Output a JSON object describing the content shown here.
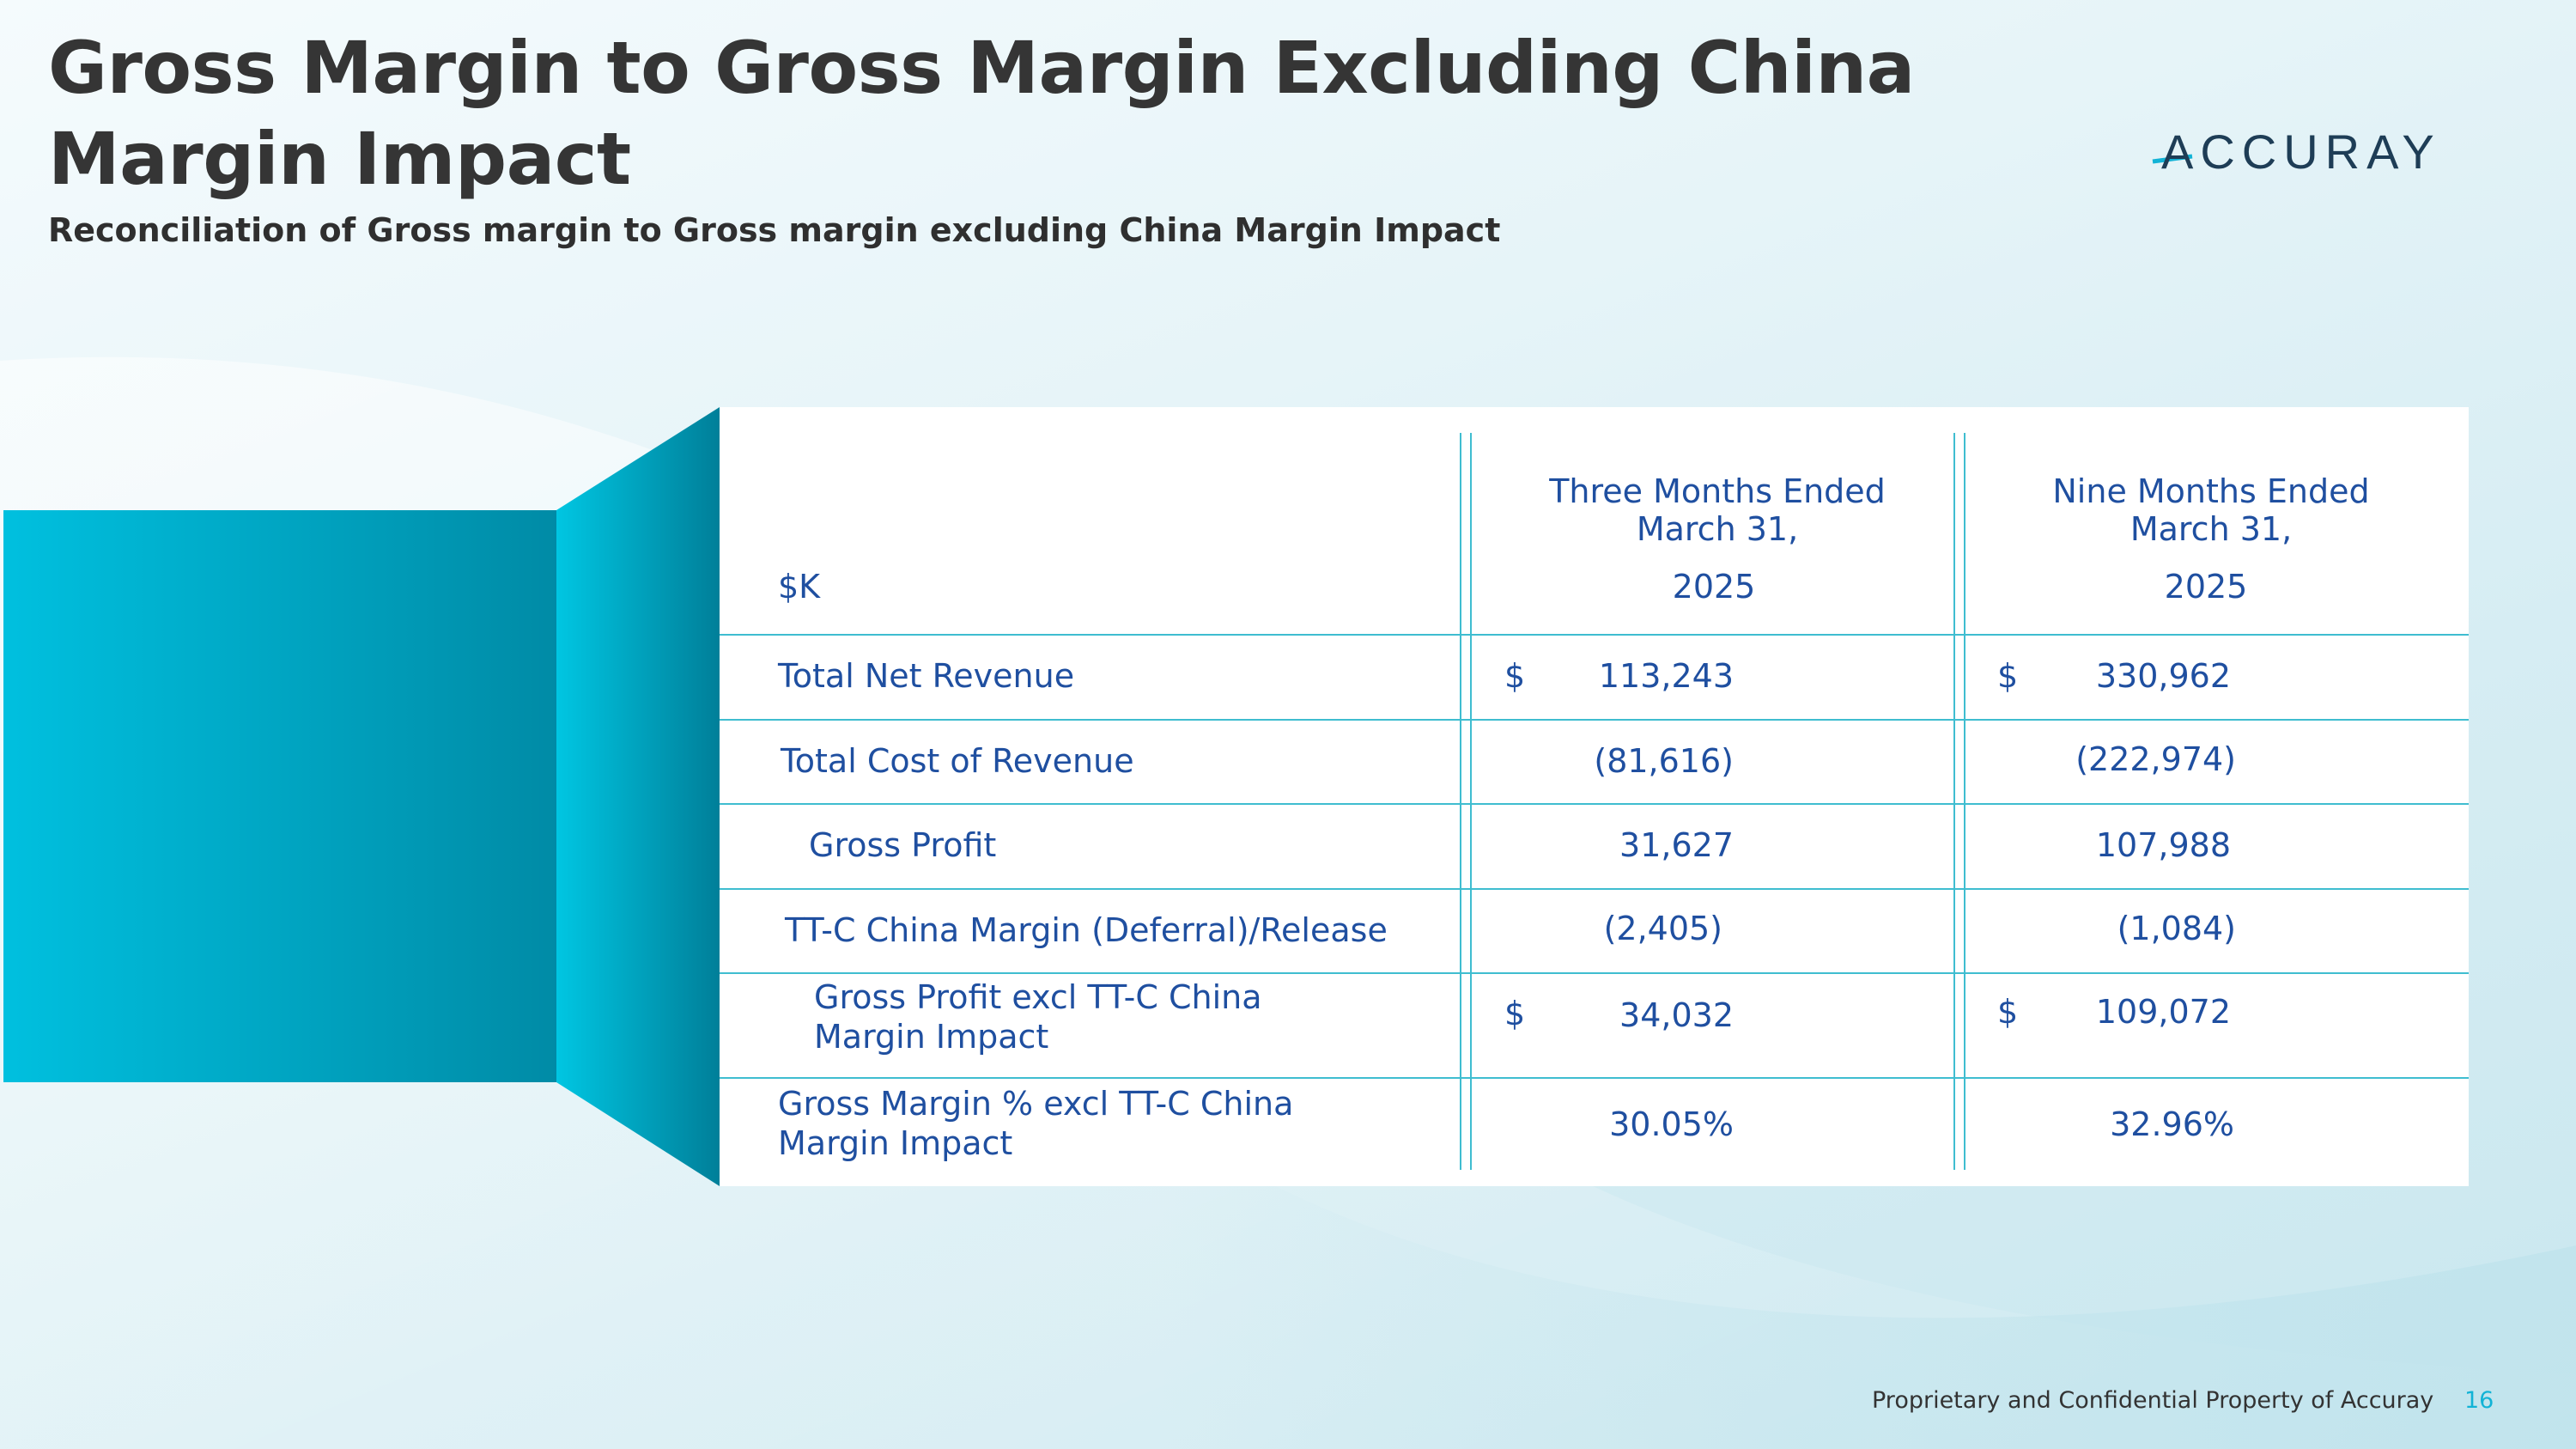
{
  "slide": {
    "title_line1": "Gross Margin to Gross Margin Excluding China",
    "title_line2": "Margin Impact",
    "subtitle": "Reconciliation of Gross margin to Gross margin excluding China Margin Impact",
    "logo_text": "ACCURAY",
    "footer": "Proprietary and Confidential Property of Accuray",
    "page_number": "16"
  },
  "table": {
    "unit_label": "$K",
    "col1": {
      "header_line1": "Three Months Ended",
      "header_line2": "March 31,",
      "year": "2025"
    },
    "col2": {
      "header_line1": "Nine Months Ended",
      "header_line2": "March 31,",
      "year": "2025"
    },
    "rows": [
      {
        "label": "Total Net Revenue",
        "cur1": "$",
        "v1": "113,243",
        "cur2": "$",
        "v2": "330,962"
      },
      {
        "label": "Total Cost of Revenue",
        "cur1": "",
        "v1": "(81,616)",
        "cur2": "",
        "v2": "(222,974)"
      },
      {
        "label": "Gross Profit",
        "cur1": "",
        "v1": "31,627",
        "cur2": "",
        "v2": "107,988"
      },
      {
        "label": "TT-C China Margin (Deferral)/Release",
        "cur1": "",
        "v1": "(2,405)",
        "cur2": "",
        "v2": "(1,084)"
      },
      {
        "label_line1": "Gross Profit excl TT-C China",
        "label_line2": "Margin Impact",
        "cur1": "$",
        "v1": "34,032",
        "cur2": "$",
        "v2": "109,072"
      },
      {
        "label_line1": "Gross Margin % excl TT-C China",
        "label_line2": "Margin Impact",
        "cur1": "",
        "v1": "30.05%",
        "cur2": "",
        "v2": "32.96%"
      }
    ]
  },
  "colors": {
    "accent": "#00b7d8",
    "text_blue": "#1f4fa0",
    "rule": "#3fbdd0",
    "title": "#353535"
  }
}
